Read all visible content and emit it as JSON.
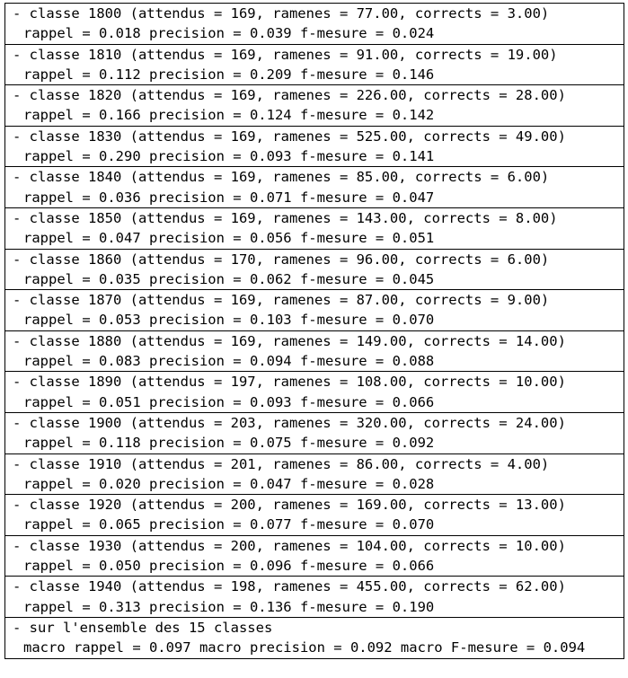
{
  "rows": [
    {
      "line1": "- classe 1800 (attendus = 169, ramenes = 77.00, corrects = 3.00)",
      "line2": "rappel = 0.018 precision = 0.039 f-mesure = 0.024"
    },
    {
      "line1": "- classe 1810 (attendus = 169, ramenes = 91.00, corrects = 19.00)",
      "line2": "rappel = 0.112 precision = 0.209 f-mesure = 0.146"
    },
    {
      "line1": "- classe 1820 (attendus = 169, ramenes = 226.00, corrects = 28.00)",
      "line2": "rappel = 0.166 precision = 0.124 f-mesure = 0.142"
    },
    {
      "line1": "- classe 1830 (attendus = 169, ramenes = 525.00, corrects = 49.00)",
      "line2": "rappel = 0.290 precision = 0.093 f-mesure = 0.141"
    },
    {
      "line1": "- classe 1840 (attendus = 169, ramenes = 85.00, corrects = 6.00)",
      "line2": "rappel = 0.036 precision = 0.071 f-mesure = 0.047"
    },
    {
      "line1": "- classe 1850 (attendus = 169, ramenes = 143.00, corrects = 8.00)",
      "line2": "rappel = 0.047 precision = 0.056 f-mesure = 0.051"
    },
    {
      "line1": "- classe 1860 (attendus = 170, ramenes = 96.00, corrects = 6.00)",
      "line2": "rappel = 0.035 precision = 0.062 f-mesure = 0.045"
    },
    {
      "line1": "- classe 1870 (attendus = 169, ramenes = 87.00, corrects = 9.00)",
      "line2": "rappel = 0.053 precision = 0.103 f-mesure = 0.070"
    },
    {
      "line1": "- classe 1880 (attendus = 169, ramenes = 149.00, corrects = 14.00)",
      "line2": "rappel = 0.083 precision = 0.094 f-mesure = 0.088"
    },
    {
      "line1": "- classe 1890 (attendus = 197, ramenes = 108.00, corrects = 10.00)",
      "line2": "rappel = 0.051 precision = 0.093 f-mesure = 0.066"
    },
    {
      "line1": "- classe 1900 (attendus = 203, ramenes = 320.00, corrects = 24.00)",
      "line2": "rappel = 0.118 precision = 0.075 f-mesure = 0.092"
    },
    {
      "line1": "- classe 1910 (attendus = 201, ramenes = 86.00, corrects = 4.00)",
      "line2": "rappel = 0.020 precision = 0.047 f-mesure = 0.028"
    },
    {
      "line1": "- classe 1920 (attendus = 200, ramenes = 169.00, corrects = 13.00)",
      "line2": "rappel = 0.065 precision = 0.077 f-mesure = 0.070"
    },
    {
      "line1": "- classe 1930 (attendus = 200, ramenes = 104.00, corrects = 10.00)",
      "line2": "rappel = 0.050 precision = 0.096 f-mesure = 0.066"
    },
    {
      "line1": "- classe 1940 (attendus = 198, ramenes = 455.00, corrects = 62.00)",
      "line2": "rappel = 0.313 precision = 0.136 f-mesure = 0.190"
    }
  ],
  "summary": {
    "line1": "- sur l'ensemble des 15 classes",
    "line2": "macro rappel = 0.097 macro precision = 0.092 macro F-mesure = 0.094"
  }
}
